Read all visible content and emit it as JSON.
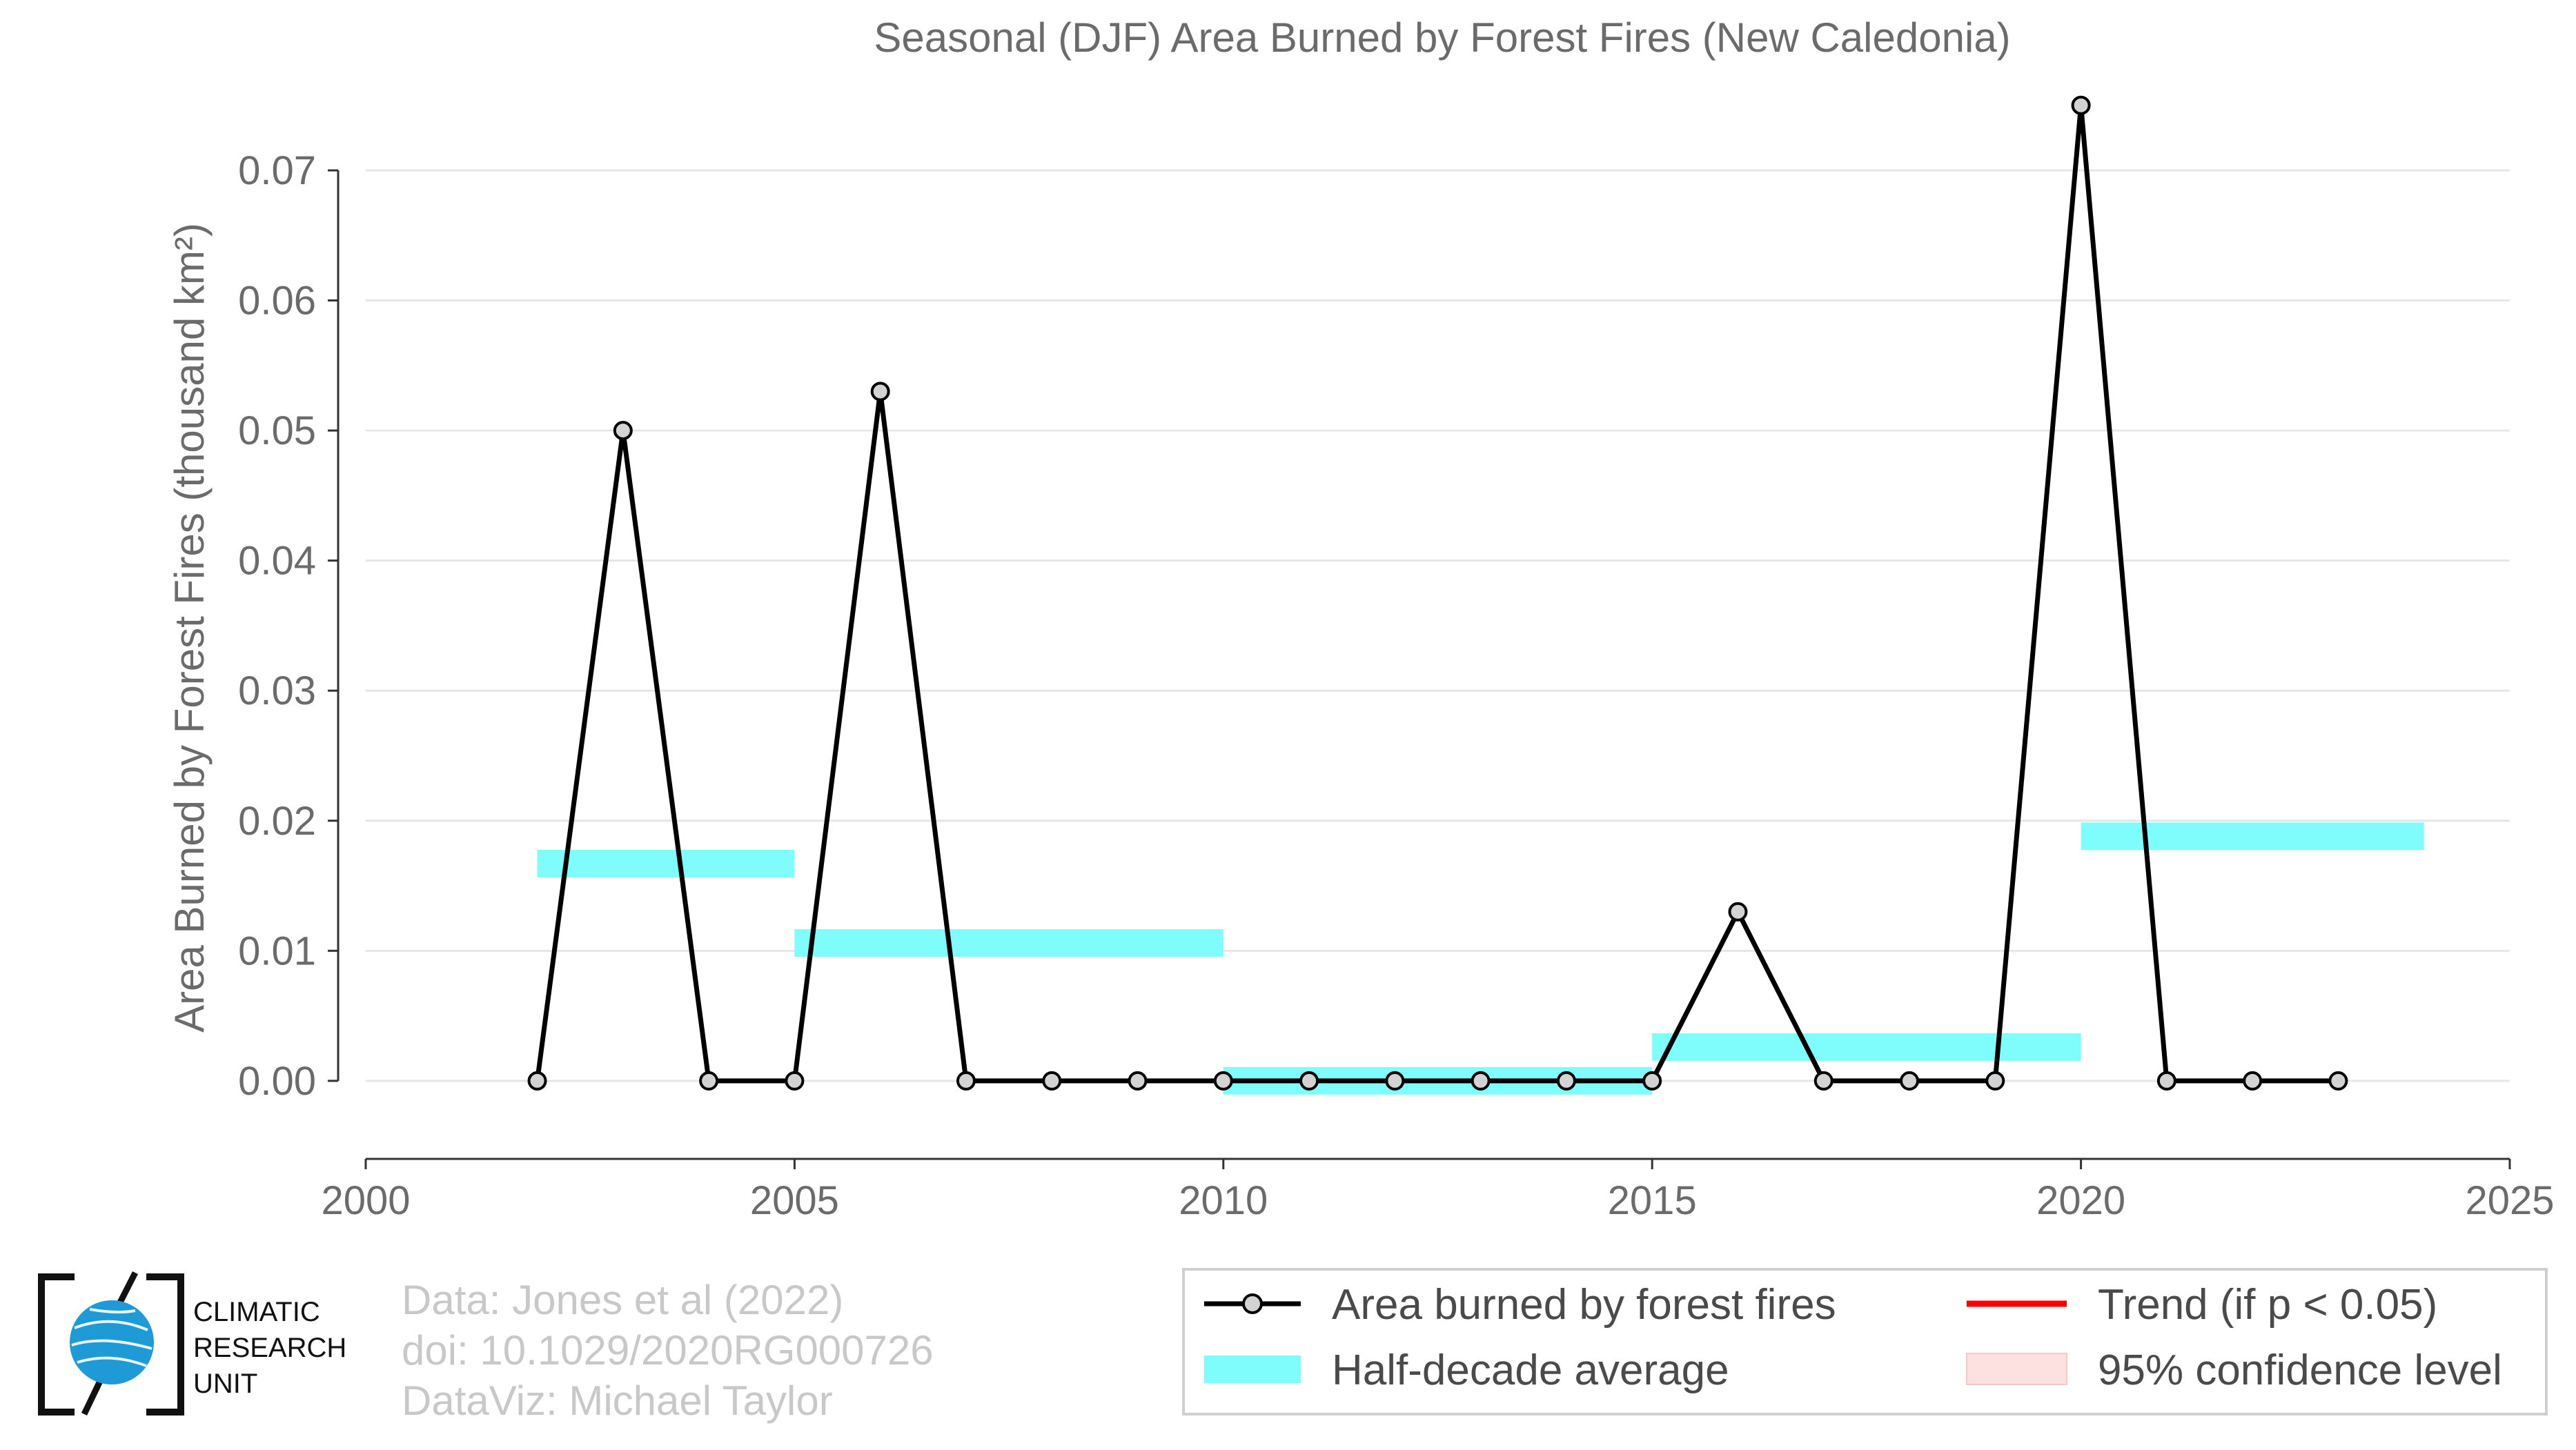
{
  "chart_data": {
    "type": "line",
    "title": "Seasonal (DJF) Area Burned by Forest Fires (New Caledonia)",
    "ylabel": "Area Burned by Forest Fires (thousand km²)",
    "xlabel": "",
    "xlim": [
      2000,
      2025
    ],
    "ylim": [
      -0.006,
      0.077
    ],
    "x_ticks": [
      2000,
      2005,
      2010,
      2015,
      2020,
      2025
    ],
    "y_ticks": [
      0.0,
      0.01,
      0.02,
      0.03,
      0.04,
      0.05,
      0.06,
      0.07
    ],
    "grid": true,
    "series": [
      {
        "name": "Area burned by forest fires",
        "color": "#000000",
        "marker_fill": "#d3d3d3",
        "x": [
          2002,
          2003,
          2004,
          2005,
          2006,
          2007,
          2008,
          2009,
          2010,
          2011,
          2012,
          2013,
          2014,
          2015,
          2016,
          2017,
          2018,
          2019,
          2020,
          2021,
          2022,
          2023
        ],
        "values": [
          0.0,
          0.05,
          0.0,
          0.0,
          0.053,
          0.0,
          0.0,
          0.0,
          0.0,
          0.0,
          0.0,
          0.0,
          0.0,
          0.0,
          0.013,
          0.0,
          0.0,
          0.0,
          0.075,
          0.0,
          0.0,
          0.0
        ]
      }
    ],
    "half_decade_average": {
      "name": "Half-decade average",
      "color": "#7ffcfc",
      "segments": [
        {
          "start": 2002,
          "end": 2005,
          "value": 0.0167
        },
        {
          "start": 2005,
          "end": 2010,
          "value": 0.0106
        },
        {
          "start": 2010,
          "end": 2015,
          "value": 0.0
        },
        {
          "start": 2015,
          "end": 2020,
          "value": 0.0026
        },
        {
          "start": 2020,
          "end": 2024,
          "value": 0.0188
        }
      ]
    },
    "legend": {
      "placement": "bottom-right",
      "entries": [
        {
          "label": "Area burned by forest fires",
          "kind": "line-marker",
          "color": "#000000"
        },
        {
          "label": "Half-decade average",
          "kind": "band",
          "color": "#7ffcfc"
        },
        {
          "label": "Trend (if p < 0.05)",
          "kind": "line",
          "color": "#ff0000"
        },
        {
          "label": "95% confidence level",
          "kind": "box",
          "color": "#fde0e0"
        }
      ]
    }
  },
  "credits": {
    "line1": "Data: Jones et al (2022)",
    "line2": "doi: 10.1029/2020RG000726",
    "line3": "DataViz: Michael Taylor"
  },
  "logo": {
    "line1": "CLIMATIC",
    "line2": "RESEARCH",
    "line3": "UNIT",
    "icon": "globe-icon"
  }
}
